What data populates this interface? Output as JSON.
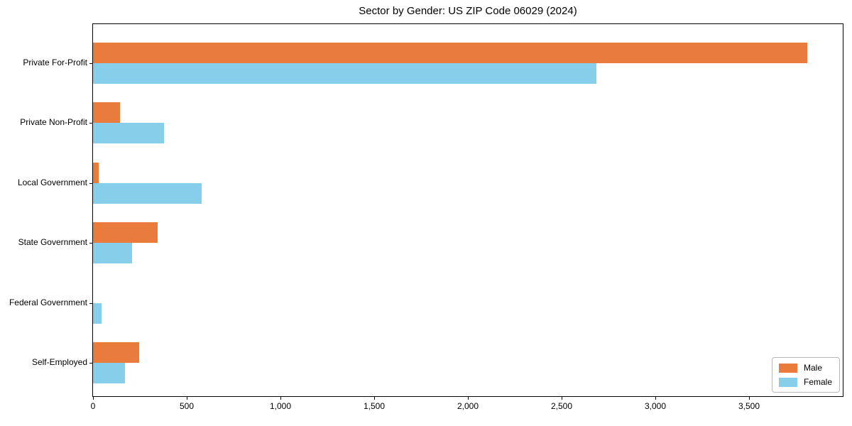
{
  "chart_data": {
    "type": "bar",
    "orientation": "horizontal",
    "title": "Sector by Gender: US ZIP Code 06029 (2024)",
    "categories": [
      "Private For-Profit",
      "Private Non-Profit",
      "Local Government",
      "State Government",
      "Federal Government",
      "Self-Employed"
    ],
    "series": [
      {
        "name": "Male",
        "color": "#E97C3C",
        "values": [
          3810,
          145,
          30,
          345,
          0,
          245
        ]
      },
      {
        "name": "Female",
        "color": "#87CEEB",
        "values": [
          2685,
          380,
          580,
          210,
          45,
          170
        ]
      }
    ],
    "xlabel": "",
    "ylabel": "",
    "xlim": [
      0,
      4000
    ],
    "x_ticks": [
      0,
      500,
      1000,
      1500,
      2000,
      2500,
      3000,
      3500
    ],
    "x_tick_labels": [
      "0",
      "500",
      "1,000",
      "1,500",
      "2,000",
      "2,500",
      "3,000",
      "3,500"
    ],
    "grid": false,
    "legend": {
      "position": "lower-right",
      "entries": [
        "Male",
        "Female"
      ]
    }
  }
}
